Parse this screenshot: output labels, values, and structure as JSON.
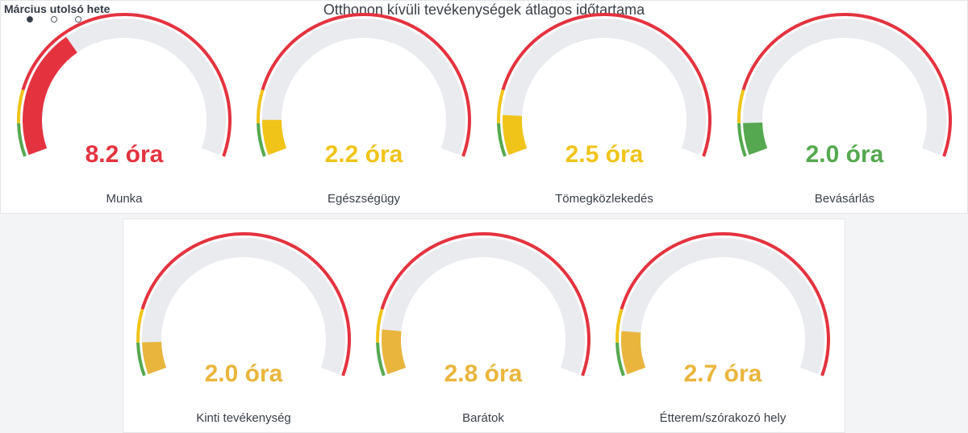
{
  "header": {
    "period": "Március utolsó hete",
    "title": "Otthonon kívüli tevékenységek átlagos időtartama",
    "page_dots": [
      {
        "active": true
      },
      {
        "active": false
      },
      {
        "active": false
      }
    ]
  },
  "colors": {
    "track": "#e9ebef",
    "green": "#55a84f",
    "yellow": "#f0c419",
    "red": "#e4333f",
    "amber": "#e9b53c"
  },
  "chart_data": {
    "type": "gauge",
    "min": 0,
    "max": 24,
    "bands": [
      {
        "from": 0,
        "to": 2,
        "color": "#55a84f"
      },
      {
        "from": 2,
        "to": 4,
        "color": "#f0c419"
      },
      {
        "from": 4,
        "to": 24,
        "color": "#e4333f"
      }
    ],
    "unit": "óra",
    "gauges": [
      {
        "label": "Munka",
        "value": 8.2,
        "display": "8.2 óra",
        "color": "#e4333f"
      },
      {
        "label": "Egészségügy",
        "value": 2.2,
        "display": "2.2 óra",
        "color": "#f0c419"
      },
      {
        "label": "Tömegközlekedés",
        "value": 2.5,
        "display": "2.5 óra",
        "color": "#f0c419"
      },
      {
        "label": "Bevásárlás",
        "value": 2.0,
        "display": "2.0 óra",
        "color": "#55a84f"
      },
      {
        "label": "Kinti tevékenység",
        "value": 2.0,
        "display": "2.0 óra",
        "color": "#e9b53c"
      },
      {
        "label": "Barátok",
        "value": 2.8,
        "display": "2.8 óra",
        "color": "#e9b53c"
      },
      {
        "label": "Étterem/szórakozó hely",
        "value": 2.7,
        "display": "2.7 óra",
        "color": "#e9b53c"
      }
    ]
  }
}
